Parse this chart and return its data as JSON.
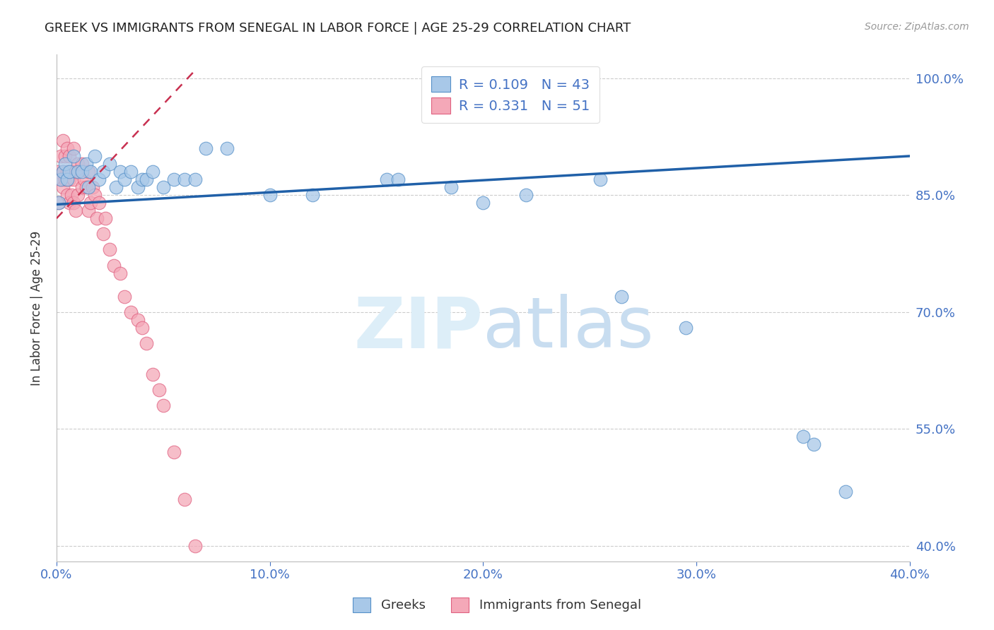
{
  "title": "GREEK VS IMMIGRANTS FROM SENEGAL IN LABOR FORCE | AGE 25-29 CORRELATION CHART",
  "source": "Source: ZipAtlas.com",
  "ylabel": "In Labor Force | Age 25-29",
  "legend_label_blue": "Greeks",
  "legend_label_pink": "Immigrants from Senegal",
  "R_blue": 0.109,
  "N_blue": 43,
  "R_pink": 0.331,
  "N_pink": 51,
  "xlim": [
    0.0,
    0.4
  ],
  "ylim": [
    0.38,
    1.03
  ],
  "yticks": [
    0.4,
    0.55,
    0.7,
    0.85,
    1.0
  ],
  "xticks": [
    0.0,
    0.1,
    0.2,
    0.3,
    0.4
  ],
  "color_blue": "#a8c8e8",
  "color_pink": "#f4a8b8",
  "edge_blue": "#5590c8",
  "edge_pink": "#e06080",
  "trendline_blue": "#2060a8",
  "trendline_pink": "#c83050",
  "axis_color": "#4472c4",
  "watermark_color": "#ddeef8",
  "blue_x": [
    0.001,
    0.002,
    0.003,
    0.004,
    0.005,
    0.006,
    0.008,
    0.01,
    0.012,
    0.014,
    0.015,
    0.016,
    0.018,
    0.02,
    0.022,
    0.025,
    0.028,
    0.03,
    0.032,
    0.035,
    0.038,
    0.04,
    0.042,
    0.045,
    0.05,
    0.055,
    0.06,
    0.065,
    0.07,
    0.08,
    0.1,
    0.12,
    0.155,
    0.16,
    0.185,
    0.2,
    0.22,
    0.255,
    0.265,
    0.295,
    0.35,
    0.355,
    0.37
  ],
  "blue_y": [
    0.84,
    0.87,
    0.88,
    0.89,
    0.87,
    0.88,
    0.9,
    0.88,
    0.88,
    0.89,
    0.86,
    0.88,
    0.9,
    0.87,
    0.88,
    0.89,
    0.86,
    0.88,
    0.87,
    0.88,
    0.86,
    0.87,
    0.87,
    0.88,
    0.86,
    0.87,
    0.87,
    0.87,
    0.91,
    0.91,
    0.85,
    0.85,
    0.87,
    0.87,
    0.86,
    0.84,
    0.85,
    0.87,
    0.72,
    0.68,
    0.54,
    0.53,
    0.47
  ],
  "pink_x": [
    0.001,
    0.001,
    0.002,
    0.002,
    0.003,
    0.003,
    0.003,
    0.004,
    0.004,
    0.005,
    0.005,
    0.005,
    0.006,
    0.006,
    0.006,
    0.007,
    0.007,
    0.008,
    0.008,
    0.008,
    0.009,
    0.009,
    0.01,
    0.01,
    0.012,
    0.012,
    0.013,
    0.014,
    0.015,
    0.015,
    0.016,
    0.017,
    0.018,
    0.019,
    0.02,
    0.022,
    0.023,
    0.025,
    0.027,
    0.03,
    0.032,
    0.035,
    0.038,
    0.04,
    0.042,
    0.045,
    0.048,
    0.05,
    0.055,
    0.06,
    0.065
  ],
  "pink_y": [
    0.84,
    0.88,
    0.87,
    0.9,
    0.86,
    0.88,
    0.92,
    0.87,
    0.9,
    0.85,
    0.88,
    0.91,
    0.84,
    0.87,
    0.9,
    0.85,
    0.88,
    0.84,
    0.87,
    0.91,
    0.83,
    0.88,
    0.85,
    0.89,
    0.86,
    0.89,
    0.87,
    0.86,
    0.83,
    0.88,
    0.84,
    0.86,
    0.85,
    0.82,
    0.84,
    0.8,
    0.82,
    0.78,
    0.76,
    0.75,
    0.72,
    0.7,
    0.69,
    0.68,
    0.66,
    0.62,
    0.6,
    0.58,
    0.52,
    0.46,
    0.4
  ],
  "trendline_blue_x0": 0.0,
  "trendline_blue_y0": 0.838,
  "trendline_blue_x1": 0.4,
  "trendline_blue_y1": 0.9,
  "trendline_pink_x0": 0.0,
  "trendline_pink_y0": 0.82,
  "trendline_pink_x1": 0.065,
  "trendline_pink_y1": 1.01
}
